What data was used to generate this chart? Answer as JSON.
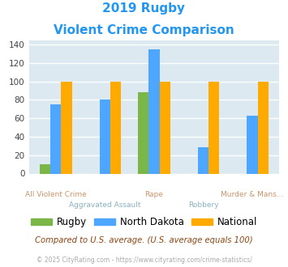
{
  "title_line1": "2019 Rugby",
  "title_line2": "Violent Crime Comparison",
  "rugby": [
    10,
    0,
    88,
    0,
    0
  ],
  "nd": [
    75,
    80,
    135,
    29,
    63
  ],
  "national": [
    100,
    100,
    100,
    100,
    100
  ],
  "color_rugby": "#7ab648",
  "color_nd": "#4da6ff",
  "color_national": "#ffaa00",
  "yticks": [
    0,
    20,
    40,
    60,
    80,
    100,
    120,
    140
  ],
  "ylim": [
    0,
    145
  ],
  "bg_color": "#dce9f0",
  "grid_color": "#ffffff",
  "title_color": "#2196F3",
  "xlabel_upper_color": "#c8956c",
  "xlabel_lower_color": "#8ab0be",
  "labels_upper": [
    "All Violent Crime",
    "",
    "Rape",
    "",
    "Murder & Mans..."
  ],
  "labels_lower": [
    "",
    "Aggravated Assault",
    "",
    "Robbery",
    ""
  ],
  "footer_note": "Compared to U.S. average. (U.S. average equals 100)",
  "footer_copy": "© 2025 CityRating.com - https://www.cityrating.com/crime-statistics/",
  "legend_labels": [
    "Rugby",
    "North Dakota",
    "National"
  ]
}
